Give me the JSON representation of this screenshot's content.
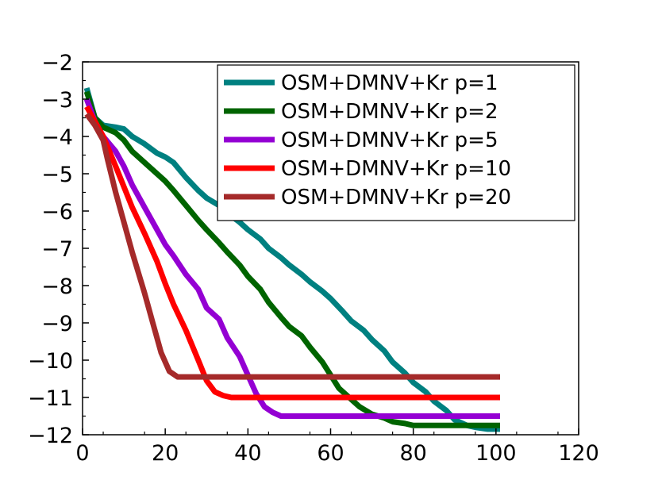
{
  "chart_data": {
    "type": "line",
    "title": "",
    "xlabel": "",
    "ylabel": "",
    "xlim": [
      0,
      120
    ],
    "ylim": [
      -12,
      -2
    ],
    "xticks": [
      0,
      20,
      40,
      60,
      80,
      100,
      120
    ],
    "yticks": [
      -2,
      -3,
      -4,
      -5,
      -6,
      -7,
      -8,
      -9,
      -10,
      -11,
      -12
    ],
    "xtick_labels": [
      "0",
      "20",
      "40",
      "60",
      "80",
      "100",
      "120"
    ],
    "ytick_labels": [
      "−2",
      "−3",
      "−4",
      "−5",
      "−6",
      "−7",
      "−8",
      "−9",
      "−10",
      "−11",
      "−12"
    ],
    "grid": false,
    "legend_position": "top-right",
    "series": [
      {
        "name": "OSM+DMNV+Kr p=1",
        "color": "#008080",
        "x": [
          1,
          3,
          5,
          8,
          10,
          12,
          15,
          18,
          20,
          22,
          25,
          28,
          30,
          33,
          35,
          38,
          40,
          43,
          45,
          48,
          50,
          53,
          55,
          58,
          60,
          63,
          65,
          68,
          70,
          73,
          75,
          78,
          80,
          83,
          85,
          88,
          90,
          93,
          95,
          98,
          101
        ],
        "values": [
          -2.7,
          -3.5,
          -3.7,
          -3.75,
          -3.8,
          -4.0,
          -4.2,
          -4.45,
          -4.55,
          -4.7,
          -5.1,
          -5.45,
          -5.65,
          -5.85,
          -6.05,
          -6.3,
          -6.5,
          -6.75,
          -7.0,
          -7.25,
          -7.45,
          -7.7,
          -7.9,
          -8.15,
          -8.35,
          -8.7,
          -8.95,
          -9.2,
          -9.45,
          -9.75,
          -10.05,
          -10.35,
          -10.6,
          -10.85,
          -11.1,
          -11.35,
          -11.6,
          -11.75,
          -11.8,
          -11.85,
          -11.85
        ]
      },
      {
        "name": "OSM+DMNV+Kr p=2",
        "color": "#006400",
        "x": [
          1,
          3,
          5,
          8,
          10,
          12,
          15,
          18,
          20,
          22,
          25,
          28,
          30,
          33,
          35,
          38,
          40,
          43,
          45,
          48,
          50,
          53,
          55,
          58,
          60,
          62,
          65,
          67,
          70,
          73,
          75,
          78,
          80,
          85,
          90,
          95,
          101
        ],
        "values": [
          -2.8,
          -3.5,
          -3.75,
          -3.9,
          -4.1,
          -4.4,
          -4.7,
          -5.0,
          -5.2,
          -5.45,
          -5.85,
          -6.25,
          -6.5,
          -6.85,
          -7.1,
          -7.45,
          -7.75,
          -8.1,
          -8.45,
          -8.85,
          -9.1,
          -9.35,
          -9.65,
          -10.05,
          -10.4,
          -10.75,
          -11.05,
          -11.25,
          -11.45,
          -11.55,
          -11.65,
          -11.7,
          -11.75,
          -11.75,
          -11.75,
          -11.75,
          -11.75
        ]
      },
      {
        "name": "OSM+DMNV+Kr p=5",
        "color": "#9400D3",
        "x": [
          1,
          3,
          5,
          8,
          10,
          12,
          15,
          18,
          20,
          22,
          25,
          28,
          30,
          33,
          35,
          38,
          40,
          42,
          44,
          46,
          48,
          50,
          55,
          60,
          70,
          80,
          90,
          101
        ],
        "values": [
          -3.0,
          -3.6,
          -4.0,
          -4.4,
          -4.8,
          -5.3,
          -5.9,
          -6.5,
          -6.9,
          -7.2,
          -7.7,
          -8.1,
          -8.6,
          -8.9,
          -9.4,
          -9.9,
          -10.4,
          -10.9,
          -11.25,
          -11.4,
          -11.5,
          -11.5,
          -11.5,
          -11.5,
          -11.5,
          -11.5,
          -11.5,
          -11.5
        ]
      },
      {
        "name": "OSM+DMNV+Kr p=10",
        "color": "#FF0000",
        "x": [
          1,
          3,
          5,
          8,
          10,
          12,
          15,
          18,
          20,
          22,
          25,
          28,
          30,
          32,
          34,
          36,
          38,
          40,
          50,
          60,
          70,
          80,
          90,
          101
        ],
        "values": [
          -3.2,
          -3.6,
          -4.0,
          -4.8,
          -5.35,
          -5.9,
          -6.6,
          -7.35,
          -7.95,
          -8.5,
          -9.2,
          -10.0,
          -10.55,
          -10.85,
          -10.95,
          -11.0,
          -11.0,
          -11.0,
          -11.0,
          -11.0,
          -11.0,
          -11.0,
          -11.0,
          -11.0
        ]
      },
      {
        "name": "OSM+DMNV+Kr p=20",
        "color": "#A52A2A",
        "x": [
          1,
          3,
          5,
          6,
          8,
          10,
          12,
          15,
          17,
          19,
          21,
          23,
          25,
          30,
          40,
          50,
          60,
          70,
          80,
          90,
          101
        ],
        "values": [
          -3.4,
          -3.7,
          -4.1,
          -4.6,
          -5.5,
          -6.3,
          -7.1,
          -8.2,
          -9.0,
          -9.8,
          -10.3,
          -10.45,
          -10.45,
          -10.45,
          -10.45,
          -10.45,
          -10.45,
          -10.45,
          -10.45,
          -10.45,
          -10.45
        ]
      }
    ]
  }
}
